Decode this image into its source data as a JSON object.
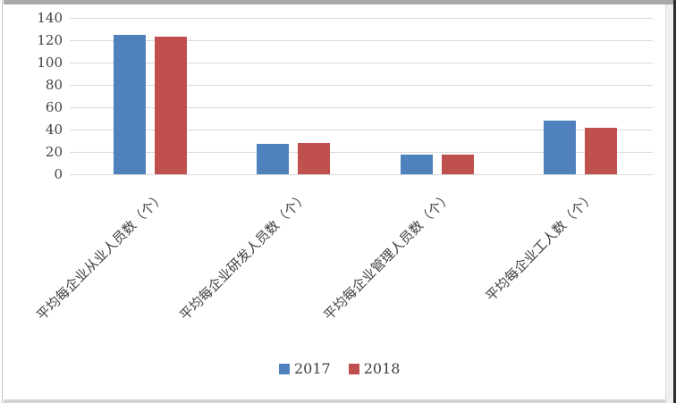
{
  "page": {
    "background": "#ffffff",
    "borders": {
      "top_strip_color": "#a9a9a9",
      "left_line_color": "#c3c3c3",
      "bottom_strip_color": "#d4d4d4",
      "right_gutter_color": "#efefef",
      "right_gutter_line_color": "#dcdcdc",
      "right_edge_color": "#2d2d2d"
    }
  },
  "chart_data": {
    "type": "bar",
    "title": "",
    "xlabel": "",
    "ylabel": "",
    "categories": [
      "平均每企业从业人员数（个）",
      "平均每企业研发人员数（个）",
      "平均每企业管理人员数（个）",
      "平均每企业工人数（个）"
    ],
    "series": [
      {
        "name": "2017",
        "color": "#4f81bd",
        "values": [
          125,
          27,
          18,
          48
        ]
      },
      {
        "name": "2018",
        "color": "#c0504d",
        "values": [
          123,
          28,
          18,
          42
        ]
      }
    ],
    "ylim": [
      0,
      140
    ],
    "yticks": [
      0,
      20,
      40,
      60,
      80,
      100,
      120,
      140
    ],
    "grid": true,
    "gridline_color": "#d9d9d9",
    "axis_text_color": "#404040",
    "legend_position": "bottom",
    "legend_labels": [
      "2017",
      "2018"
    ]
  }
}
